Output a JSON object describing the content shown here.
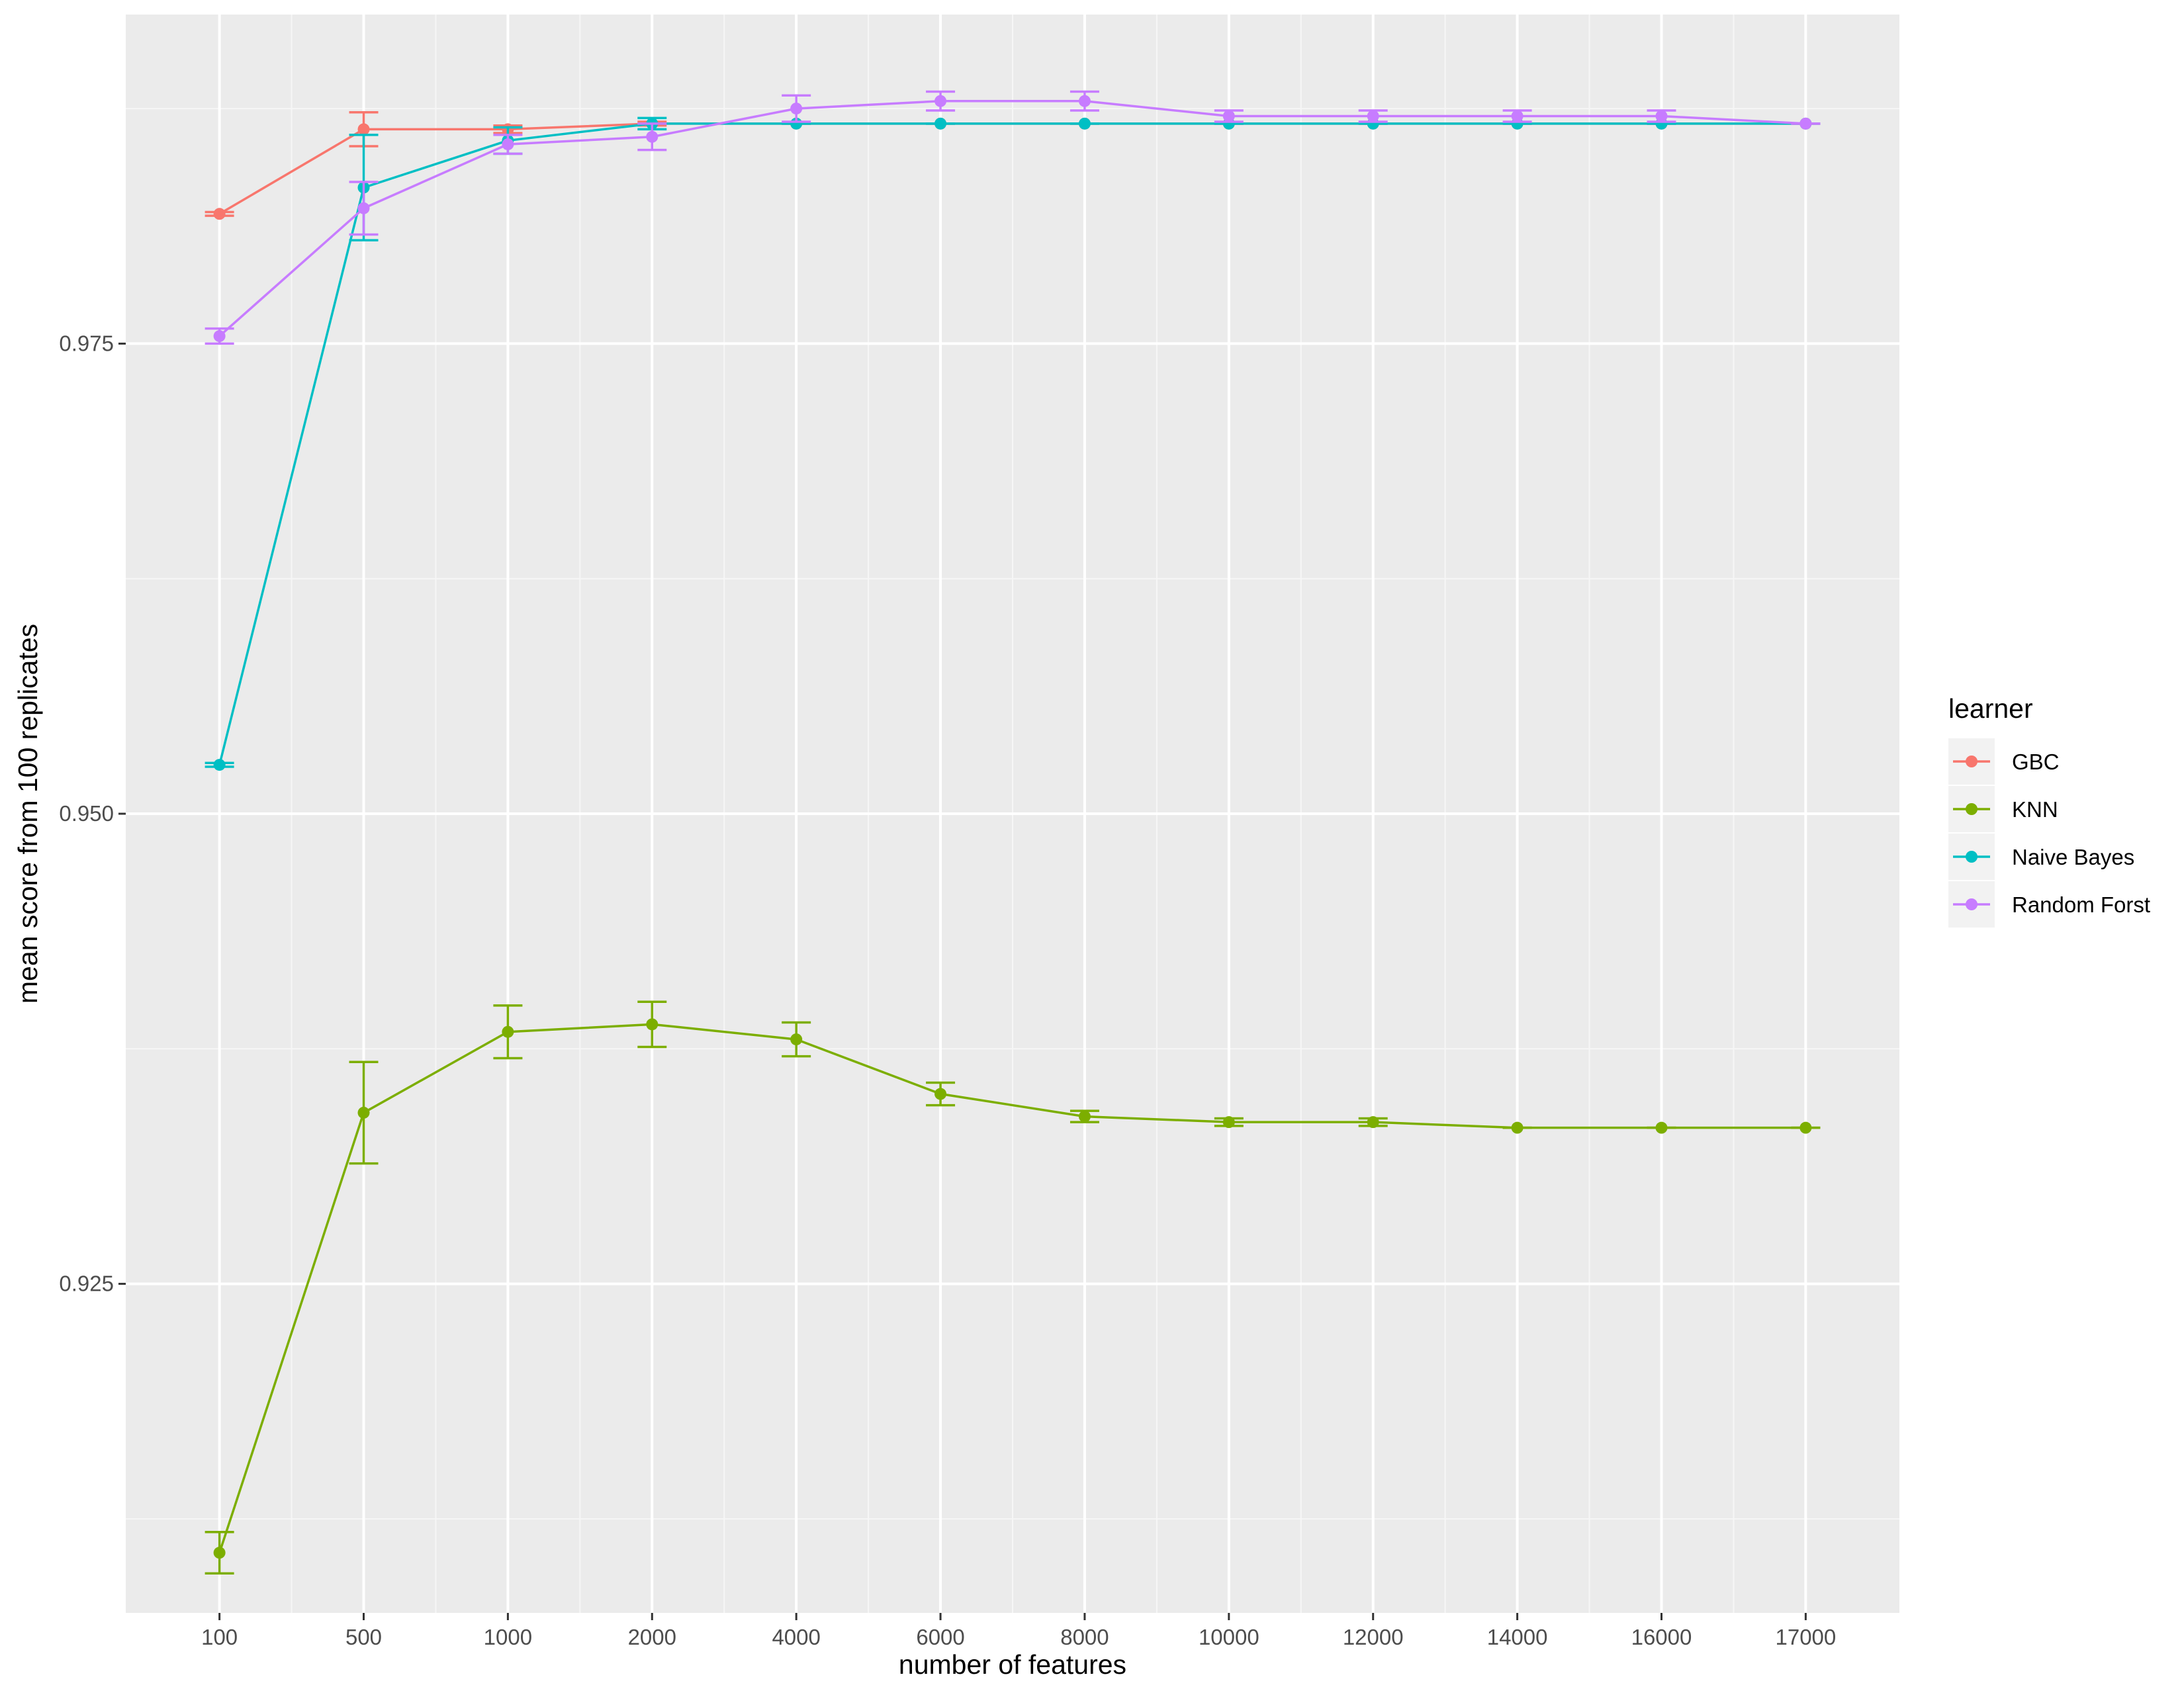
{
  "chart_data": {
    "type": "line",
    "xlabel": "number of features",
    "ylabel": "mean score from 100 replicates",
    "x_tick_labels": [
      "100",
      "500",
      "1000",
      "2000",
      "4000",
      "6000",
      "8000",
      "10000",
      "12000",
      "14000",
      "16000",
      "17000"
    ],
    "y_ticks": [
      "0.925",
      "0.950",
      "0.975"
    ],
    "ylim": [
      0.9075,
      0.9925
    ],
    "grid": true,
    "legend": {
      "title": "learner",
      "placement": "right"
    },
    "series": [
      {
        "name": "GBC",
        "color": "#F8766D",
        "values": [
          0.9819,
          0.9864,
          0.9864,
          0.9867,
          0.9867,
          0.9867,
          0.9867,
          0.9867,
          0.9867,
          0.9867,
          0.9867,
          0.9867
        ],
        "errors": [
          0.0001,
          0.0009,
          0.0002,
          0.0001,
          0,
          0,
          0,
          0,
          0,
          0,
          0,
          0
        ]
      },
      {
        "name": "KNN",
        "color": "#7CAE00",
        "values": [
          0.9107,
          0.9341,
          0.9384,
          0.9388,
          0.938,
          0.9351,
          0.9339,
          0.9336,
          0.9336,
          0.9333,
          0.9333,
          0.9333
        ],
        "errors": [
          0.0011,
          0.0027,
          0.0014,
          0.0012,
          0.0009,
          0.0006,
          0.0003,
          0.0002,
          0.0002,
          0,
          0,
          0
        ]
      },
      {
        "name": "Naive Bayes",
        "color": "#00BFC4",
        "values": [
          0.9526,
          0.9833,
          0.9858,
          0.9867,
          0.9867,
          0.9867,
          0.9867,
          0.9867,
          0.9867,
          0.9867,
          0.9867,
          0.9867
        ],
        "errors": [
          0.0001,
          0.0028,
          0.0007,
          0.0003,
          0,
          0,
          0,
          0,
          0,
          0,
          0,
          0
        ]
      },
      {
        "name": "Random Forst",
        "color": "#C77CFF",
        "values": [
          0.9754,
          0.9822,
          0.9856,
          0.986,
          0.9875,
          0.9879,
          0.9879,
          0.9871,
          0.9871,
          0.9871,
          0.9871,
          0.9867
        ],
        "errors": [
          0.0004,
          0.0014,
          0.0005,
          0.0007,
          0.0007,
          0.0005,
          0.0005,
          0.0003,
          0.0003,
          0.0003,
          0.0003,
          0
        ]
      }
    ]
  }
}
